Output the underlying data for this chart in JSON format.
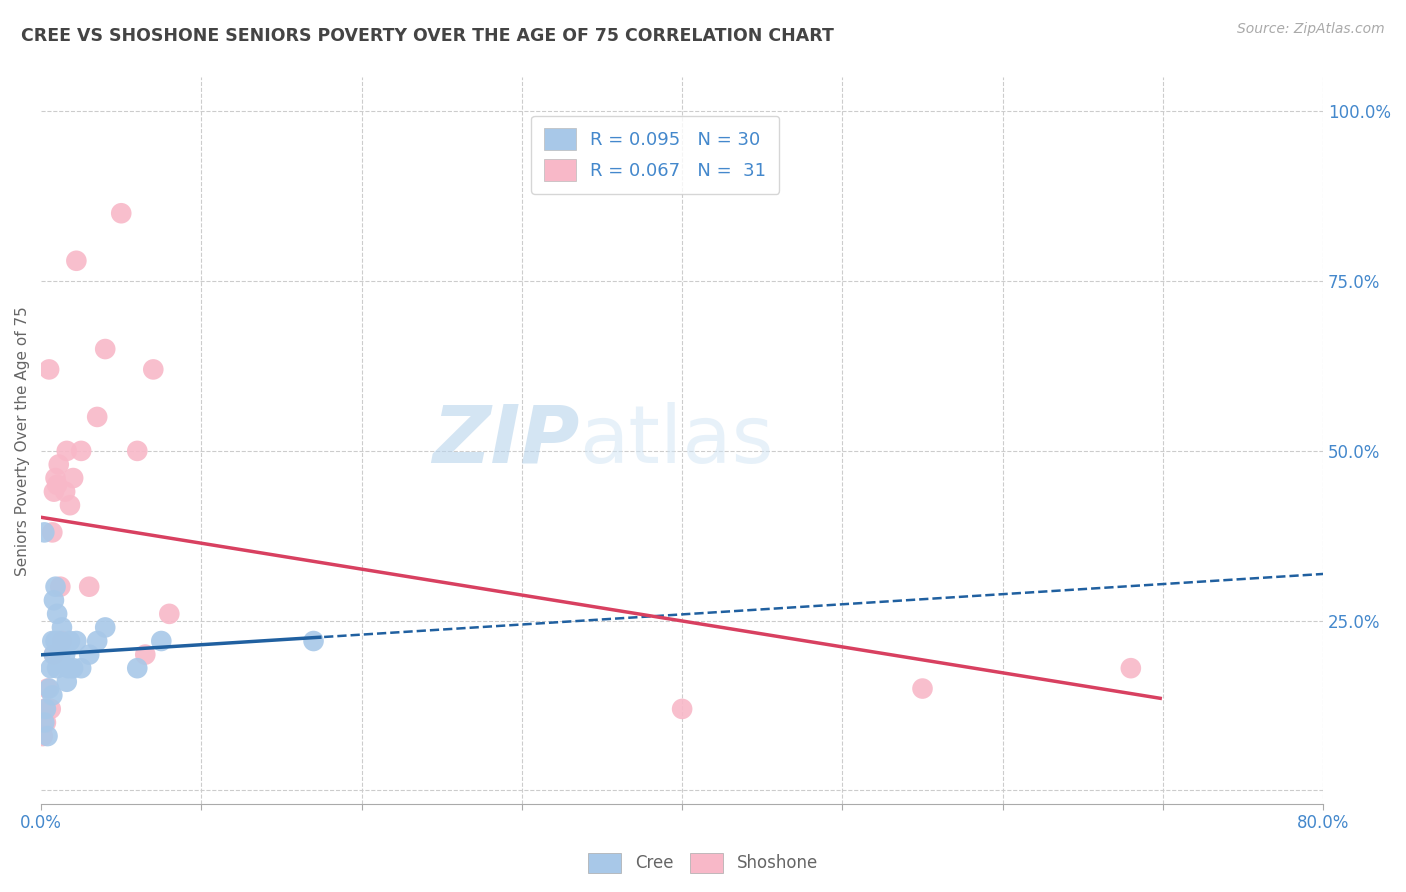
{
  "title": "CREE VS SHOSHONE SENIORS POVERTY OVER THE AGE OF 75 CORRELATION CHART",
  "source": "Source: ZipAtlas.com",
  "ylabel": "Seniors Poverty Over the Age of 75",
  "watermark_zip": "ZIP",
  "watermark_atlas": "atlas",
  "xlim": [
    0.0,
    0.8
  ],
  "ylim": [
    -0.02,
    1.05
  ],
  "xticks": [
    0.0,
    0.1,
    0.2,
    0.3,
    0.4,
    0.5,
    0.6,
    0.7,
    0.8
  ],
  "xtick_labels": [
    "0.0%",
    "",
    "",
    "",
    "",
    "",
    "",
    "",
    "80.0%"
  ],
  "yticks": [
    0.0,
    0.25,
    0.5,
    0.75,
    1.0
  ],
  "ytick_labels_right": [
    "",
    "25.0%",
    "50.0%",
    "75.0%",
    "100.0%"
  ],
  "cree_color": "#a8c8e8",
  "shoshone_color": "#f8b8c8",
  "cree_line_color": "#2060a0",
  "shoshone_line_color": "#d84060",
  "legend_label_cree": "R = 0.095   N = 30",
  "legend_label_shoshone": "R = 0.067   N =  31",
  "cree_x": [
    0.002,
    0.003,
    0.004,
    0.005,
    0.006,
    0.007,
    0.007,
    0.008,
    0.008,
    0.009,
    0.009,
    0.01,
    0.01,
    0.011,
    0.012,
    0.013,
    0.015,
    0.016,
    0.017,
    0.018,
    0.02,
    0.022,
    0.025,
    0.03,
    0.035,
    0.04,
    0.06,
    0.075,
    0.17,
    0.002
  ],
  "cree_y": [
    0.1,
    0.12,
    0.08,
    0.15,
    0.18,
    0.22,
    0.14,
    0.28,
    0.2,
    0.3,
    0.22,
    0.26,
    0.18,
    0.22,
    0.2,
    0.24,
    0.2,
    0.16,
    0.18,
    0.22,
    0.18,
    0.22,
    0.18,
    0.2,
    0.22,
    0.24,
    0.18,
    0.22,
    0.22,
    0.38
  ],
  "shoshone_x": [
    0.001,
    0.002,
    0.003,
    0.004,
    0.005,
    0.006,
    0.007,
    0.008,
    0.008,
    0.009,
    0.01,
    0.011,
    0.012,
    0.013,
    0.015,
    0.016,
    0.018,
    0.02,
    0.022,
    0.025,
    0.03,
    0.035,
    0.04,
    0.05,
    0.06,
    0.065,
    0.07,
    0.08,
    0.4,
    0.55,
    0.68
  ],
  "shoshone_y": [
    0.08,
    0.12,
    0.1,
    0.15,
    0.62,
    0.12,
    0.38,
    0.44,
    0.2,
    0.46,
    0.45,
    0.48,
    0.3,
    0.22,
    0.44,
    0.5,
    0.42,
    0.46,
    0.78,
    0.5,
    0.3,
    0.55,
    0.65,
    0.85,
    0.5,
    0.2,
    0.62,
    0.26,
    0.12,
    0.15,
    0.18
  ],
  "background_color": "#ffffff",
  "grid_color": "#cccccc",
  "title_color": "#444444",
  "label_color": "#666666",
  "right_label_color": "#4488cc",
  "bottom_label_color": "#4488cc"
}
